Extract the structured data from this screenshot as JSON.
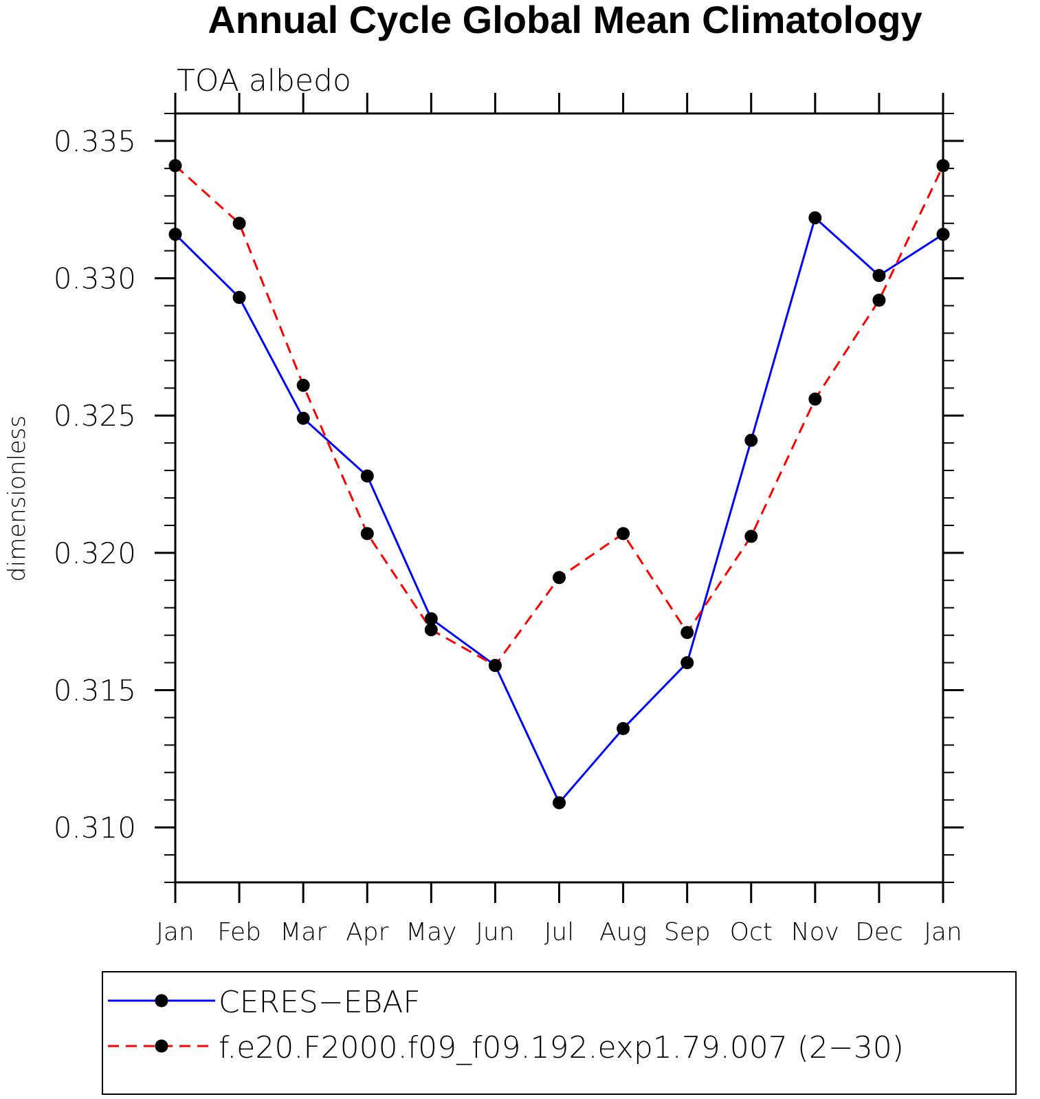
{
  "chart_data": {
    "type": "line",
    "title": "Annual Cycle Global Mean Climatology",
    "subtitle": "TOA albedo",
    "xlabel": "",
    "ylabel": "dimensionless",
    "categories": [
      "Jan",
      "Feb",
      "Mar",
      "Apr",
      "May",
      "Jun",
      "Jul",
      "Aug",
      "Sep",
      "Oct",
      "Nov",
      "Dec",
      "Jan"
    ],
    "ylim": [
      0.308,
      0.336
    ],
    "yticks": [
      "0.310",
      "0.315",
      "0.320",
      "0.325",
      "0.330",
      "0.335"
    ],
    "series": [
      {
        "name": "CERES−EBAF",
        "color": "#0000ff",
        "dash": "solid",
        "values": [
          0.3316,
          0.3293,
          0.3249,
          0.3228,
          0.3176,
          0.3159,
          0.3109,
          0.3136,
          0.316,
          0.3241,
          0.3322,
          0.3301,
          0.3316
        ]
      },
      {
        "name": "f.e20.F2000.f09_f09.192.exp1.79.007 (2−30)",
        "color": "#ff0000",
        "dash": "dashed",
        "values": [
          0.3341,
          0.332,
          0.3261,
          0.3207,
          0.3172,
          0.3159,
          0.3191,
          0.3207,
          0.3171,
          0.3206,
          0.3256,
          0.3292,
          0.3341
        ]
      }
    ],
    "grid": false,
    "legend_position": "bottom"
  }
}
